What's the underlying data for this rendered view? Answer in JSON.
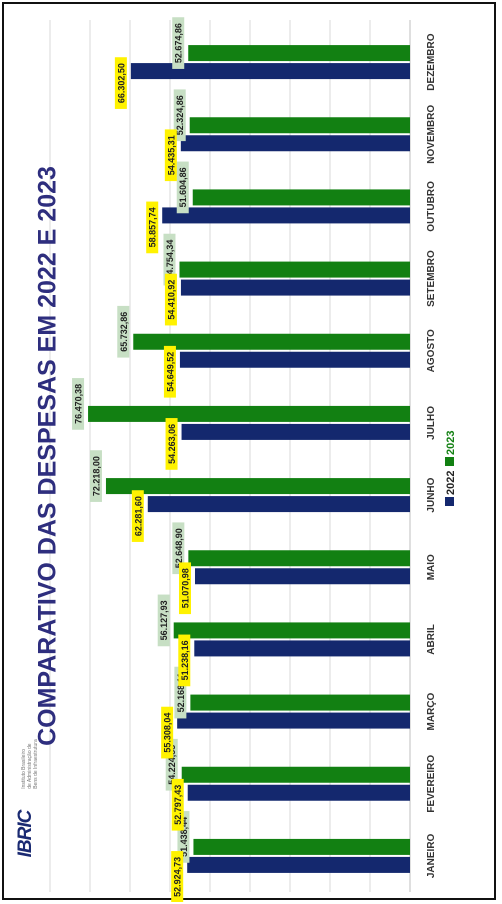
{
  "chart_data": {
    "type": "bar",
    "title": "COMPARATIVO DAS DESPESAS EM 2022 E 2023",
    "categories": [
      "JANEIRO",
      "FEVEREIRO",
      "MARÇO",
      "ABRIL",
      "MAIO",
      "JUNHO",
      "JULHO",
      "AGOSTO",
      "SETEMBRO",
      "OUTUBRO",
      "NOVEMBRO",
      "DEZEMBRO"
    ],
    "series": [
      {
        "name": "2022",
        "color": "#14286e",
        "values": [
          52924.73,
          52797.43,
          55308.04,
          51238.16,
          51070.98,
          62281.6,
          54263.06,
          54649.52,
          54410.92,
          58857.74,
          54435.31,
          66302.5
        ],
        "labels": [
          "52.924,73",
          "52.797,43",
          "55.308,04",
          "51.238,16",
          "51.070,98",
          "62.281,60",
          "54.263,06",
          "54.649,52",
          "54.410,92",
          "58.857,74",
          "54.435,31",
          "66.302,50"
        ]
      },
      {
        "name": "2023",
        "color": "#128012",
        "values": [
          51438.44,
          54224.55,
          52168.11,
          56127.93,
          52648.9,
          72218.0,
          76470.38,
          65732.86,
          54754.34,
          51604.86,
          52324.86,
          52674.86
        ],
        "labels": [
          "51.438,44",
          "54.224,55",
          "52.168,11",
          "56.127,93",
          "52.648,90",
          "72.218,00",
          "76.470,38",
          "65.732,86",
          "54.754,34",
          "51.604,86",
          "52.324,86",
          "52.674,86"
        ]
      }
    ],
    "orientation": "rotated-90",
    "legend": "bottom",
    "grid": true,
    "label_colors": {
      "2022": "#fff200",
      "2023": "#c7dfc4"
    }
  },
  "logo": {
    "text": "IBRIC",
    "caption": "Instituto Brasileiro\nde Administração de\nBens de Infraestrutura"
  }
}
